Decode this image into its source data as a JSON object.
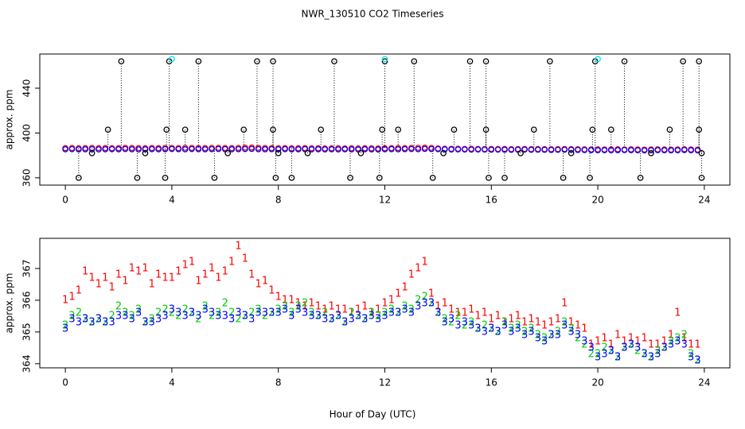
{
  "chart_data": [
    {
      "type": "scatter",
      "title": "NWR_130510  CO2 Timeseries",
      "ylabel": "approx. ppm",
      "xlim": [
        -0.96,
        24.96
      ],
      "xticks": [
        0,
        4,
        8,
        12,
        16,
        20,
        24
      ],
      "ylim": [
        353.5,
        470.5
      ],
      "yticks": [
        360,
        400,
        440
      ],
      "x": [
        0,
        0.25,
        0.5,
        0.75,
        1,
        1.25,
        1.5,
        1.75,
        2,
        2.25,
        2.5,
        2.75,
        3,
        3.25,
        3.5,
        3.75,
        4,
        4.25,
        4.5,
        4.75,
        5,
        5.25,
        5.5,
        5.75,
        6,
        6.25,
        6.5,
        6.75,
        7,
        7.25,
        7.5,
        7.75,
        8,
        8.25,
        8.5,
        8.75,
        9,
        9.25,
        9.5,
        9.75,
        10,
        10.25,
        10.5,
        10.75,
        11,
        11.25,
        11.5,
        11.75,
        12,
        12.25,
        12.5,
        12.75,
        13,
        13.25,
        13.5,
        13.75,
        14,
        14.25,
        14.5,
        14.75,
        15,
        15.25,
        15.5,
        15.75,
        16,
        16.25,
        16.5,
        16.75,
        17,
        17.25,
        17.5,
        17.75,
        18,
        18.25,
        18.5,
        18.75,
        19,
        19.25,
        19.5,
        19.75,
        20,
        20.25,
        20.5,
        20.75,
        21,
        21.25,
        21.5,
        21.75,
        22,
        22.25,
        22.5,
        22.75,
        23,
        23.25,
        23.5,
        23.75
      ],
      "series": [
        {
          "color": "#ff0000",
          "shape": "circle",
          "values": [
            386.5,
            386.6,
            386.4,
            386.5,
            386.7,
            386.5,
            386.6,
            386.4,
            386.5,
            386.8,
            386.6,
            386.5,
            386.4,
            386.6,
            386.5,
            386.7,
            386.6,
            386.5,
            386.8,
            386.7,
            386.6,
            386.5,
            386.7,
            386.8,
            386.6,
            386.5,
            386.7,
            386.9,
            387.0,
            386.8,
            386.6,
            386.5,
            386.4,
            386.5,
            386.3,
            386.4,
            386.5,
            386.3,
            386.4,
            386.2,
            386.3,
            386.4,
            386.2,
            386.3,
            386.2,
            386.4,
            386.3,
            386.2,
            386.4,
            386.5,
            386.6,
            386.5,
            386.7,
            386.8,
            386.9,
            386.7,
            386.2,
            386.0,
            385.9,
            386.0,
            385.8,
            385.9,
            385.8,
            385.7,
            385.8,
            385.7,
            385.8,
            385.6,
            385.7,
            385.8,
            385.6,
            385.7,
            385.6,
            385.5,
            385.6,
            385.7,
            385.6,
            385.5,
            385.4,
            385.3,
            385.4,
            385.3,
            385.4,
            385.5,
            385.3,
            385.4,
            385.3,
            385.2,
            385.3,
            385.4,
            385.3,
            385.2,
            385.3,
            385.5,
            385.3,
            385.2
          ]
        },
        {
          "color": "#0000ff",
          "shape": "circle",
          "values": [
            385.5,
            385.6,
            385.4,
            385.5,
            385.6,
            385.4,
            385.5,
            385.6,
            385.5,
            385.7,
            385.5,
            385.4,
            385.5,
            385.6,
            385.5,
            385.6,
            385.7,
            385.6,
            385.5,
            385.7,
            385.6,
            385.5,
            385.6,
            385.7,
            385.6,
            385.5,
            385.6,
            385.7,
            385.8,
            385.6,
            385.5,
            385.6,
            385.5,
            385.6,
            385.4,
            385.5,
            385.6,
            385.4,
            385.5,
            385.4,
            385.5,
            385.4,
            385.5,
            385.4,
            385.3,
            385.5,
            385.4,
            385.3,
            385.5,
            385.6,
            385.5,
            385.6,
            385.7,
            385.6,
            385.8,
            385.7,
            385.6,
            385.4,
            385.3,
            385.4,
            385.3,
            385.2,
            385.3,
            385.2,
            385.1,
            385.2,
            385.1,
            385.0,
            385.1,
            385.2,
            385.0,
            385.1,
            385.0,
            384.9,
            385.0,
            385.1,
            385.0,
            384.9,
            384.8,
            384.7,
            384.6,
            384.7,
            384.6,
            384.7,
            384.8,
            384.7,
            384.6,
            384.5,
            384.6,
            384.7,
            384.6,
            384.5,
            384.6,
            384.8,
            384.6,
            384.5
          ]
        },
        {
          "color": "#000000",
          "shape": "circle",
          "droplines": true,
          "x": [
            0.5,
            1.0,
            1.6,
            2.1,
            2.7,
            3.0,
            3.75,
            3.8,
            3.9,
            4.5,
            5.0,
            5.6,
            6.1,
            6.7,
            7.2,
            7.8,
            7.8,
            7.9,
            8.0,
            8.5,
            9.1,
            9.6,
            10.1,
            10.7,
            11.1,
            11.8,
            11.9,
            12.0,
            12.5,
            13.1,
            13.8,
            14.2,
            14.6,
            15.2,
            15.8,
            15.8,
            15.9,
            16.5,
            17.1,
            17.6,
            18.2,
            18.7,
            19.0,
            19.7,
            19.8,
            19.9,
            20.5,
            21.0,
            21.6,
            22.0,
            22.7,
            23.2,
            23.8,
            23.8,
            23.9,
            23.9
          ],
          "values": [
            360,
            382,
            403,
            464,
            360,
            382,
            360,
            403,
            464,
            403,
            464,
            360,
            382,
            403,
            464,
            464,
            403,
            360,
            382,
            360,
            382,
            403,
            464,
            360,
            382,
            360,
            403,
            464,
            403,
            464,
            360,
            382,
            403,
            464,
            464,
            403,
            360,
            360,
            382,
            403,
            464,
            360,
            382,
            360,
            403,
            464,
            403,
            464,
            360,
            382,
            403,
            464,
            464,
            403,
            360,
            382
          ]
        },
        {
          "color": "#00e5ee",
          "shape": "circle",
          "x": [
            4.0,
            12.0,
            20.0
          ],
          "values": [
            466,
            466,
            466
          ]
        }
      ]
    },
    {
      "type": "scatter",
      "ylabel": "approx. ppm",
      "xlabel": "Hour of Day (UTC)",
      "xlim": [
        -0.96,
        24.96
      ],
      "xticks": [
        0,
        4,
        8,
        12,
        16,
        20,
        24
      ],
      "ylim": [
        363.87,
        367.95
      ],
      "yticks": [
        364,
        365,
        366,
        367
      ],
      "x": [
        0,
        0.25,
        0.5,
        0.75,
        1,
        1.25,
        1.5,
        1.75,
        2,
        2.25,
        2.5,
        2.75,
        3,
        3.25,
        3.5,
        3.75,
        4,
        4.25,
        4.5,
        4.75,
        5,
        5.25,
        5.5,
        5.75,
        6,
        6.25,
        6.5,
        6.75,
        7,
        7.25,
        7.5,
        7.75,
        8,
        8.25,
        8.5,
        8.75,
        9,
        9.25,
        9.5,
        9.75,
        10,
        10.25,
        10.5,
        10.75,
        11,
        11.25,
        11.5,
        11.75,
        12,
        12.25,
        12.5,
        12.75,
        13,
        13.25,
        13.5,
        13.75,
        14,
        14.25,
        14.5,
        14.75,
        15,
        15.25,
        15.5,
        15.75,
        16,
        16.25,
        16.5,
        16.75,
        17,
        17.25,
        17.5,
        17.75,
        18,
        18.25,
        18.5,
        18.75,
        19,
        19.25,
        19.5,
        19.75,
        20,
        20.25,
        20.5,
        20.75,
        21,
        21.25,
        21.5,
        21.75,
        22,
        22.25,
        22.5,
        22.75,
        23,
        23.25,
        23.5,
        23.75
      ],
      "series": [
        {
          "marker": "1",
          "color": "#ff0000",
          "values": [
            366.0,
            366.1,
            366.3,
            366.9,
            366.7,
            366.5,
            366.7,
            366.4,
            366.8,
            366.6,
            367.0,
            366.9,
            367.0,
            366.5,
            366.8,
            366.7,
            366.7,
            366.9,
            367.1,
            367.2,
            366.6,
            366.8,
            367.0,
            366.7,
            366.9,
            367.2,
            367.7,
            367.3,
            366.8,
            366.5,
            366.6,
            366.3,
            366.1,
            366.0,
            366.0,
            365.9,
            365.8,
            365.9,
            365.8,
            365.7,
            365.8,
            365.7,
            365.7,
            365.6,
            365.7,
            365.8,
            365.6,
            365.7,
            365.9,
            366.0,
            366.2,
            366.4,
            366.8,
            367.0,
            367.2,
            366.2,
            365.8,
            365.9,
            365.7,
            365.6,
            365.6,
            365.7,
            365.5,
            365.6,
            365.4,
            365.5,
            365.3,
            365.4,
            365.5,
            365.3,
            365.4,
            365.3,
            365.2,
            365.3,
            365.4,
            365.9,
            365.3,
            365.2,
            365.1,
            364.6,
            364.7,
            364.8,
            364.6,
            364.9,
            364.7,
            364.8,
            364.7,
            364.8,
            364.6,
            364.6,
            364.7,
            364.9,
            365.6,
            364.8,
            364.6,
            364.6
          ]
        },
        {
          "marker": "2",
          "color": "#00cd00",
          "values": [
            365.2,
            365.5,
            365.6,
            365.4,
            365.3,
            365.4,
            365.3,
            365.5,
            365.8,
            365.6,
            365.5,
            365.7,
            365.3,
            365.4,
            365.6,
            365.7,
            365.6,
            365.5,
            365.7,
            365.6,
            365.4,
            365.8,
            365.5,
            365.6,
            365.9,
            365.6,
            365.4,
            365.5,
            365.6,
            365.7,
            365.5,
            365.6,
            365.7,
            365.8,
            365.6,
            365.8,
            365.9,
            365.6,
            365.5,
            365.6,
            365.4,
            365.5,
            365.3,
            365.6,
            365.5,
            365.4,
            365.6,
            365.5,
            365.6,
            365.7,
            365.6,
            365.8,
            365.7,
            366.0,
            366.1,
            365.9,
            365.6,
            365.4,
            365.3,
            365.5,
            365.2,
            365.3,
            365.1,
            365.2,
            365.1,
            365.0,
            365.3,
            365.1,
            365.2,
            365.0,
            365.1,
            364.9,
            364.8,
            364.9,
            365.0,
            365.3,
            365.1,
            364.8,
            364.6,
            364.3,
            364.3,
            364.5,
            364.4,
            364.2,
            364.5,
            364.6,
            364.4,
            364.3,
            364.2,
            364.4,
            364.5,
            364.7,
            364.8,
            364.9,
            364.3,
            364.1
          ]
        },
        {
          "marker": "3",
          "color": "#0000ff",
          "values": [
            365.1,
            365.4,
            365.3,
            365.4,
            365.3,
            365.4,
            365.3,
            365.3,
            365.5,
            365.5,
            365.4,
            365.6,
            365.3,
            365.3,
            365.4,
            365.5,
            365.7,
            365.6,
            365.5,
            365.6,
            365.5,
            365.7,
            365.6,
            365.5,
            365.5,
            365.4,
            365.6,
            365.5,
            365.4,
            365.6,
            365.6,
            365.6,
            365.6,
            365.7,
            365.5,
            365.7,
            365.6,
            365.5,
            365.5,
            365.4,
            365.4,
            365.5,
            365.3,
            365.4,
            365.5,
            365.4,
            365.5,
            365.4,
            365.5,
            365.6,
            365.6,
            365.7,
            365.6,
            365.8,
            365.9,
            365.9,
            365.6,
            365.3,
            365.4,
            365.2,
            365.3,
            365.2,
            365.1,
            365.0,
            365.1,
            365.0,
            365.2,
            365.0,
            365.1,
            364.9,
            365.0,
            364.8,
            364.7,
            364.9,
            364.9,
            365.2,
            365.0,
            364.9,
            364.7,
            364.5,
            364.2,
            364.3,
            364.4,
            364.2,
            364.5,
            364.6,
            364.5,
            364.3,
            364.2,
            364.3,
            364.5,
            364.6,
            364.7,
            364.6,
            364.2,
            364.1
          ]
        }
      ]
    }
  ]
}
